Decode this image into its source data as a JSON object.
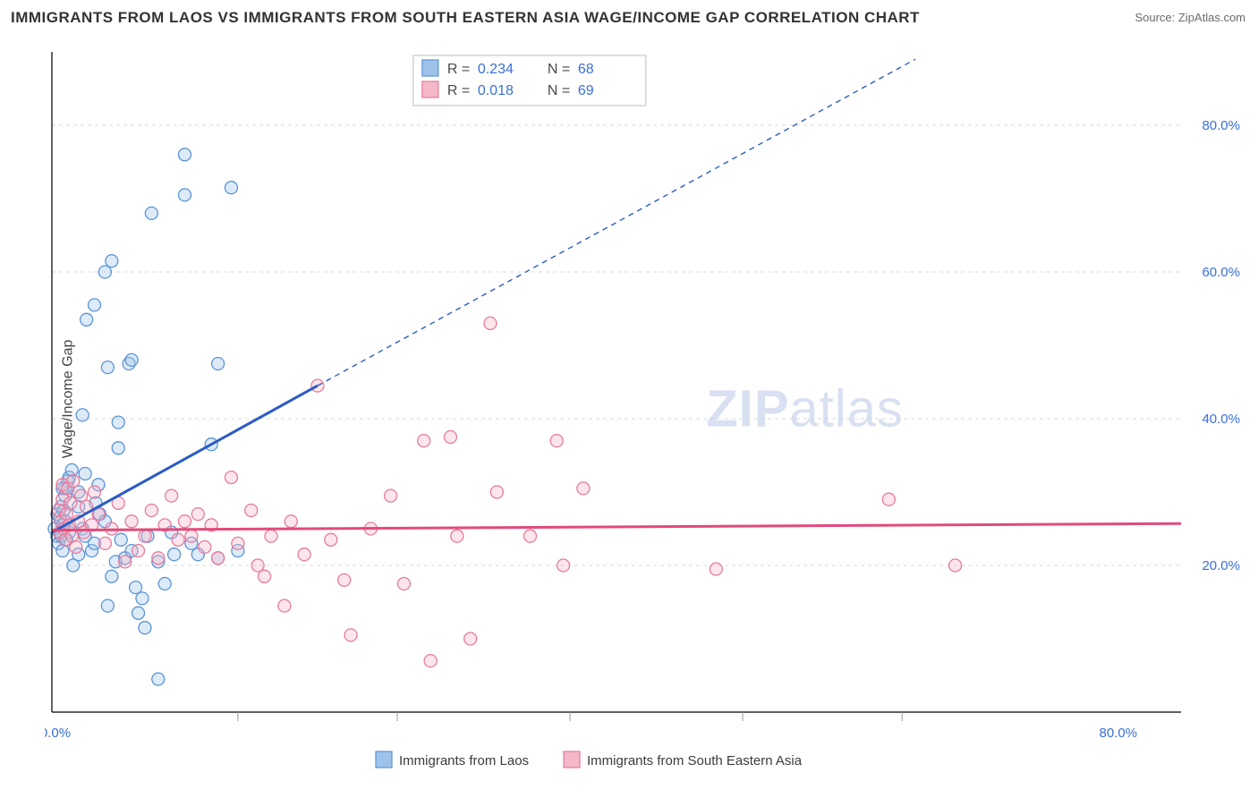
{
  "title": "IMMIGRANTS FROM LAOS VS IMMIGRANTS FROM SOUTH EASTERN ASIA WAGE/INCOME GAP CORRELATION CHART",
  "source": "Source: ZipAtlas.com",
  "ylabel": "Wage/Income Gap",
  "watermark_a": "ZIP",
  "watermark_b": "atlas",
  "chart": {
    "type": "scatter",
    "xlim": [
      0,
      85
    ],
    "ylim": [
      0,
      90
    ],
    "xticks_major": [
      0,
      80
    ],
    "xticks_minor": [
      14,
      26,
      39,
      52,
      64
    ],
    "yticks": [
      20,
      40,
      60,
      80
    ],
    "y_grid": [
      0,
      20,
      40,
      60,
      80
    ],
    "x_tick_format": "{v}.0%",
    "y_tick_format": "{v}.0%",
    "plot_bg": "#ffffff",
    "grid_color": "#d8d8d8",
    "axis_color": "#000000",
    "tick_label_color": "#3a6fd8",
    "series": [
      {
        "id": "laos",
        "label": "Immigrants from Laos",
        "fill": "#9ec3ea",
        "stroke": "#5a94d6",
        "marker_r": 7,
        "stats": {
          "R": "0.234",
          "N": "68"
        },
        "trend": {
          "color": "#2b5cc4",
          "x1": 0,
          "y1": 24.5,
          "x2": 20,
          "y2": 44.5,
          "dash_to_x": 65,
          "dash_to_y": 89
        },
        "points": [
          [
            0.2,
            25.0
          ],
          [
            0.4,
            24.0
          ],
          [
            0.4,
            27.0
          ],
          [
            0.5,
            23.0
          ],
          [
            0.6,
            26.5
          ],
          [
            0.7,
            24.0
          ],
          [
            0.7,
            28.0
          ],
          [
            0.8,
            25.5
          ],
          [
            0.8,
            22.0
          ],
          [
            1.0,
            29.5
          ],
          [
            1.0,
            30.5
          ],
          [
            1.0,
            26.0
          ],
          [
            1.1,
            23.5
          ],
          [
            1.2,
            31.5
          ],
          [
            1.3,
            24.5
          ],
          [
            1.3,
            32.0
          ],
          [
            1.5,
            33.0
          ],
          [
            1.6,
            20.0
          ],
          [
            0.8,
            30.5
          ],
          [
            0.9,
            27.5
          ],
          [
            2.0,
            21.5
          ],
          [
            2.0,
            28.0
          ],
          [
            2.0,
            30.0
          ],
          [
            2.3,
            25.0
          ],
          [
            2.5,
            24.0
          ],
          [
            2.5,
            32.5
          ],
          [
            3.0,
            22.0
          ],
          [
            3.2,
            23.0
          ],
          [
            3.3,
            28.5
          ],
          [
            3.5,
            31.0
          ],
          [
            3.6,
            27.0
          ],
          [
            4.0,
            26.0
          ],
          [
            4.2,
            14.5
          ],
          [
            4.5,
            18.5
          ],
          [
            4.8,
            20.5
          ],
          [
            5.0,
            36.0
          ],
          [
            5.5,
            21.0
          ],
          [
            5.2,
            23.5
          ],
          [
            6.0,
            22.0
          ],
          [
            6.3,
            17.0
          ],
          [
            6.5,
            13.5
          ],
          [
            6.8,
            15.5
          ],
          [
            7.0,
            11.5
          ],
          [
            7.2,
            24.0
          ],
          [
            8.0,
            20.5
          ],
          [
            8.5,
            17.5
          ],
          [
            9.0,
            24.5
          ],
          [
            9.2,
            21.5
          ],
          [
            10.5,
            23.0
          ],
          [
            11.0,
            21.5
          ],
          [
            12.0,
            36.5
          ],
          [
            12.5,
            21.0
          ],
          [
            14.0,
            22.0
          ],
          [
            8.0,
            4.5
          ],
          [
            2.3,
            40.5
          ],
          [
            2.6,
            53.5
          ],
          [
            3.2,
            55.5
          ],
          [
            4.0,
            60.0
          ],
          [
            4.5,
            61.5
          ],
          [
            4.2,
            47.0
          ],
          [
            5.0,
            39.5
          ],
          [
            5.8,
            47.5
          ],
          [
            6.0,
            48.0
          ],
          [
            7.5,
            68.0
          ],
          [
            10.0,
            70.5
          ],
          [
            10.0,
            76.0
          ],
          [
            13.5,
            71.5
          ],
          [
            12.5,
            47.5
          ]
        ]
      },
      {
        "id": "sea",
        "label": "Immigrants from South Eastern Asia",
        "fill": "#f5b8c9",
        "stroke": "#e77a9b",
        "marker_r": 7,
        "stats": {
          "R": "0.018",
          "N": "69"
        },
        "trend": {
          "color": "#e24a7a",
          "x1": 0,
          "y1": 24.8,
          "x2": 85,
          "y2": 25.7
        },
        "points": [
          [
            0.5,
            27.5
          ],
          [
            0.6,
            24.5
          ],
          [
            0.7,
            26.0
          ],
          [
            0.8,
            31.0
          ],
          [
            0.8,
            29.0
          ],
          [
            0.9,
            25.0
          ],
          [
            1.0,
            23.5
          ],
          [
            1.1,
            27.0
          ],
          [
            1.2,
            30.5
          ],
          [
            1.3,
            25.5
          ],
          [
            1.4,
            28.5
          ],
          [
            1.5,
            24.0
          ],
          [
            1.6,
            31.5
          ],
          [
            1.8,
            22.5
          ],
          [
            2.0,
            26.0
          ],
          [
            2.2,
            29.5
          ],
          [
            2.4,
            24.5
          ],
          [
            2.6,
            28.0
          ],
          [
            3.0,
            25.5
          ],
          [
            3.2,
            30.0
          ],
          [
            3.5,
            27.0
          ],
          [
            4.0,
            23.0
          ],
          [
            4.5,
            25.0
          ],
          [
            5.0,
            28.5
          ],
          [
            5.5,
            20.5
          ],
          [
            6.0,
            26.0
          ],
          [
            6.5,
            22.0
          ],
          [
            7.0,
            24.0
          ],
          [
            7.5,
            27.5
          ],
          [
            8.0,
            21.0
          ],
          [
            8.5,
            25.5
          ],
          [
            9.0,
            29.5
          ],
          [
            9.5,
            23.5
          ],
          [
            10.0,
            26.0
          ],
          [
            10.5,
            24.0
          ],
          [
            11.0,
            27.0
          ],
          [
            11.5,
            22.5
          ],
          [
            12.0,
            25.5
          ],
          [
            12.5,
            21.0
          ],
          [
            13.5,
            32.0
          ],
          [
            14.0,
            23.0
          ],
          [
            15.0,
            27.5
          ],
          [
            15.5,
            20.0
          ],
          [
            16.0,
            18.5
          ],
          [
            16.5,
            24.0
          ],
          [
            17.5,
            14.5
          ],
          [
            18.0,
            26.0
          ],
          [
            19.0,
            21.5
          ],
          [
            20.0,
            44.5
          ],
          [
            21.0,
            23.5
          ],
          [
            22.0,
            18.0
          ],
          [
            22.5,
            10.5
          ],
          [
            24.0,
            25.0
          ],
          [
            25.5,
            29.5
          ],
          [
            26.5,
            17.5
          ],
          [
            28.0,
            37.0
          ],
          [
            28.5,
            7.0
          ],
          [
            30.0,
            37.5
          ],
          [
            30.5,
            24.0
          ],
          [
            31.5,
            10.0
          ],
          [
            33.0,
            53.0
          ],
          [
            33.5,
            30.0
          ],
          [
            36.0,
            24.0
          ],
          [
            38.0,
            37.0
          ],
          [
            38.5,
            20.0
          ],
          [
            40.0,
            30.5
          ],
          [
            50.0,
            19.5
          ],
          [
            63.0,
            29.0
          ],
          [
            68.0,
            20.0
          ]
        ]
      }
    ]
  },
  "legend": {
    "items": [
      {
        "series": "laos",
        "label": "Immigrants from Laos"
      },
      {
        "series": "sea",
        "label": "Immigrants from South Eastern Asia"
      }
    ]
  },
  "stat_labels": {
    "R": "R =",
    "N": "N ="
  }
}
